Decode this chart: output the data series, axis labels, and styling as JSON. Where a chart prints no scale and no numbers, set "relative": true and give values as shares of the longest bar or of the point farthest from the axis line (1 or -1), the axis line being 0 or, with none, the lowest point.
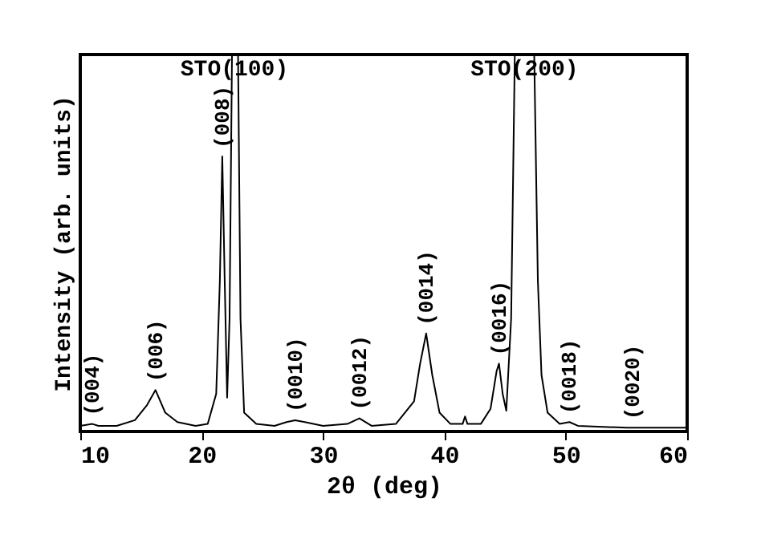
{
  "chart_data": {
    "type": "line",
    "relative": true,
    "xlabel": "2θ (deg)",
    "ylabel": "Intensity (arb. units)",
    "xlim": [
      10,
      60
    ],
    "xticks": [
      10,
      20,
      30,
      40,
      50,
      60
    ],
    "x": [
      10,
      11,
      11.5,
      13,
      14.5,
      15.5,
      16.2,
      17,
      18,
      19.5,
      20.5,
      21.2,
      21.5,
      21.7,
      21.9,
      22.1,
      22.3,
      22.5,
      23.0,
      23.2,
      23.5,
      24.5,
      26,
      27,
      27.7,
      28.5,
      30,
      32,
      33,
      34,
      36,
      37.5,
      38,
      38.5,
      39,
      39.6,
      40.5,
      41.5,
      41.7,
      41.9,
      43,
      43.8,
      44.3,
      44.5,
      44.8,
      45.1,
      45.5,
      45.8,
      47.4,
      47.7,
      48,
      48.5,
      49.5,
      50.3,
      51,
      55,
      60
    ],
    "series": [
      {
        "color": "#000000",
        "values": [
          0.015,
          0.02,
          0.015,
          0.015,
          0.03,
          0.07,
          0.11,
          0.05,
          0.025,
          0.015,
          0.02,
          0.1,
          0.4,
          0.73,
          0.4,
          0.09,
          0.3,
          1,
          1,
          0.3,
          0.05,
          0.02,
          0.015,
          0.025,
          0.03,
          0.025,
          0.015,
          0.02,
          0.035,
          0.015,
          0.02,
          0.08,
          0.18,
          0.26,
          0.15,
          0.05,
          0.02,
          0.02,
          0.04,
          0.02,
          0.02,
          0.06,
          0.16,
          0.18,
          0.1,
          0.055,
          0.3,
          1,
          1,
          0.4,
          0.15,
          0.05,
          0.02,
          0.025,
          0.015,
          0.01,
          0.01
        ]
      }
    ],
    "annotations": [
      {
        "text": "(004)",
        "x": 11,
        "y": 0.02
      },
      {
        "text": "(006)",
        "x": 16.2,
        "y": 0.11
      },
      {
        "text": "(008)",
        "x": 21.7,
        "y": 0.73
      },
      {
        "text": "STO(100)",
        "x": 22.7,
        "y": 1
      },
      {
        "text": "(0010)",
        "x": 27.7,
        "y": 0.03
      },
      {
        "text": "(0012)",
        "x": 33,
        "y": 0.035
      },
      {
        "text": "(0014)",
        "x": 38.5,
        "y": 0.26
      },
      {
        "text": "(0016)",
        "x": 44.5,
        "y": 0.18
      },
      {
        "text": "STO(200)",
        "x": 46.6,
        "y": 1
      },
      {
        "text": "(0018)",
        "x": 50.3,
        "y": 0.025
      },
      {
        "text": "(0020)",
        "x": 55.5,
        "y": 0.01
      }
    ]
  }
}
